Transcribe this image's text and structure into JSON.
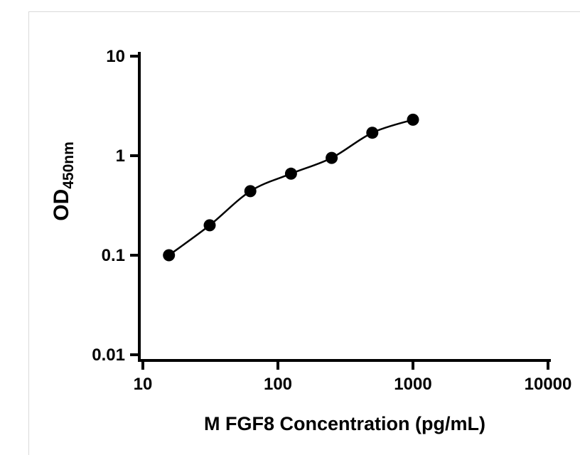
{
  "chart_data": {
    "type": "scatter",
    "title": "",
    "xlabel": "M FGF8 Concentration (pg/mL)",
    "ylabel_main": "OD",
    "ylabel_sub": "450nm",
    "x_scale": "log",
    "y_scale": "log",
    "xlim": [
      10,
      10000
    ],
    "ylim": [
      0.01,
      10
    ],
    "x_ticks": [
      10,
      100,
      1000,
      10000
    ],
    "x_tick_labels": [
      "10",
      "100",
      "1000",
      "10000"
    ],
    "y_ticks": [
      0.01,
      0.1,
      1,
      10
    ],
    "y_tick_labels": [
      "0.01",
      "0.1",
      "1",
      "10"
    ],
    "x": [
      15.6,
      31.25,
      62.5,
      125,
      250,
      500,
      1000
    ],
    "y": [
      0.1,
      0.2,
      0.44,
      0.66,
      0.95,
      1.7,
      2.3
    ],
    "grid": false,
    "legend": "none",
    "marker": "circle",
    "marker_color": "#000000",
    "line_color": "#000000",
    "axis_color": "#000000",
    "background": "#ffffff",
    "fit": "smooth standard curve through points"
  }
}
